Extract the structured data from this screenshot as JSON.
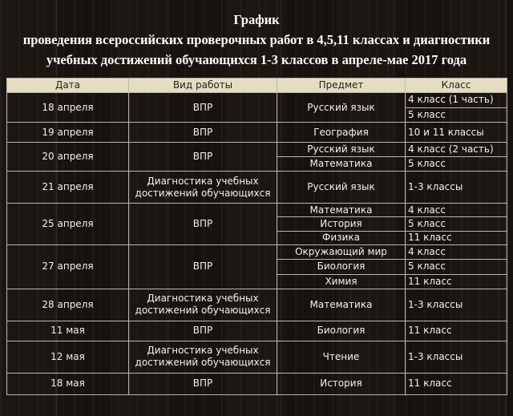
{
  "header": {
    "title": "График",
    "subtitle_1": "проведения всероссийских проверочных работ в  4,5,11 классах и диагностики",
    "subtitle_2": "учебных достижений обучающихся 1-3 классов в апреле-мае 2017 года"
  },
  "table": {
    "columns": [
      "Дата",
      "Вид работы",
      "Предмет",
      "Класс"
    ],
    "rows": [
      {
        "date": "18 апреля",
        "work": "ВПР",
        "items": [
          {
            "subject": "Русский язык",
            "grades": [
              "4 класс (1 часть)",
              "5 класс"
            ]
          }
        ]
      },
      {
        "date": "19 апреля",
        "work": "ВПР",
        "items": [
          {
            "subject": "География",
            "grades": [
              "10 и 11 классы"
            ]
          }
        ]
      },
      {
        "date": "20 апреля",
        "work": "ВПР",
        "items": [
          {
            "subject": "Русский язык",
            "grades": [
              "4 класс (2 часть)"
            ]
          },
          {
            "subject": "Математика",
            "grades": [
              "5 класс"
            ]
          }
        ]
      },
      {
        "date": "21 апреля",
        "work": "Диагностика учебных достижений обучающихся",
        "items": [
          {
            "subject": "Русский язык",
            "grades": [
              "1-3 классы"
            ]
          }
        ]
      },
      {
        "date": "25 апреля",
        "work": "ВПР",
        "items": [
          {
            "subject": "Математика",
            "grades": [
              "4 класс"
            ]
          },
          {
            "subject": "История",
            "grades": [
              "5 класс"
            ]
          },
          {
            "subject": "Физика",
            "grades": [
              "11 класс"
            ]
          }
        ]
      },
      {
        "date": "27 апреля",
        "work": "ВПР",
        "items": [
          {
            "subject": "Окружающий мир",
            "grades": [
              "4 класс"
            ]
          },
          {
            "subject": "Биология",
            "grades": [
              "5 класс"
            ]
          },
          {
            "subject": "Химия",
            "grades": [
              "11 класс"
            ]
          }
        ]
      },
      {
        "date": "28 апреля",
        "work": "Диагностика учебных достижений обучающихся",
        "items": [
          {
            "subject": "Математика",
            "grades": [
              "1-3 классы"
            ]
          }
        ]
      },
      {
        "date": "11 мая",
        "work": "ВПР",
        "items": [
          {
            "subject": "Биология",
            "grades": [
              "11 класс"
            ]
          }
        ]
      },
      {
        "date": "12 мая",
        "work": "Диагностика учебных достижений обучающихся",
        "items": [
          {
            "subject": "Чтение",
            "grades": [
              "1-3 классы"
            ]
          }
        ]
      },
      {
        "date": "18 мая",
        "work": "ВПР",
        "items": [
          {
            "subject": "История",
            "grades": [
              "11 класс"
            ]
          }
        ]
      }
    ]
  }
}
